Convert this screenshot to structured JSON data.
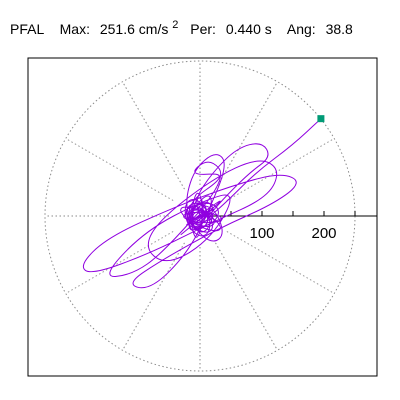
{
  "header": {
    "station": "PFAL",
    "max_label": "Max:",
    "max_value": "251.6 cm/s",
    "max_exp": "2",
    "per_label": "Per:",
    "per_value": "0.440 s",
    "ang_label": "Ang:",
    "ang_value": "38.8"
  },
  "chart_data": {
    "type": "particle-motion (polar plot)",
    "units": "cm/s^2",
    "max_amplitude": 251.6,
    "period_s": 0.44,
    "angle_deg": 38.8,
    "radial_ticks": [
      50,
      100,
      150,
      200,
      250
    ],
    "axis_tick_labels": [
      "100",
      "200"
    ],
    "spokes_deg": [
      0,
      30,
      60,
      90,
      120,
      150,
      180,
      210,
      240,
      270,
      300,
      330
    ],
    "grid": true,
    "trace_color": "#9000e0",
    "end_marker_color": "#009b76",
    "end_point": {
      "x": 195,
      "y": 157
    },
    "trace": [
      {
        "x": 0,
        "y": 0
      },
      {
        "x": 10,
        "y": 6
      },
      {
        "x": -8,
        "y": -5
      },
      {
        "x": 15,
        "y": 9
      },
      {
        "x": -20,
        "y": -12
      },
      {
        "x": 28,
        "y": 16
      },
      {
        "x": -25,
        "y": -15
      },
      {
        "x": 40,
        "y": 22
      },
      {
        "x": -45,
        "y": -30
      },
      {
        "x": 60,
        "y": 45
      },
      {
        "x": -55,
        "y": -50
      },
      {
        "x": 30,
        "y": 20
      },
      {
        "x": 5,
        "y": -40
      },
      {
        "x": -30,
        "y": 15
      },
      {
        "x": 50,
        "y": 70
      },
      {
        "x": -20,
        "y": 65
      },
      {
        "x": 15,
        "y": 95
      },
      {
        "x": 45,
        "y": 60
      },
      {
        "x": -60,
        "y": -60
      },
      {
        "x": -110,
        "y": -95
      },
      {
        "x": -160,
        "y": -100
      },
      {
        "x": -90,
        "y": -25
      },
      {
        "x": 5,
        "y": 25
      },
      {
        "x": 60,
        "y": 40
      },
      {
        "x": 20,
        "y": -35
      },
      {
        "x": -50,
        "y": -80
      },
      {
        "x": -90,
        "y": -55
      },
      {
        "x": -70,
        "y": -10
      },
      {
        "x": 20,
        "y": 60
      },
      {
        "x": 95,
        "y": 95
      },
      {
        "x": 130,
        "y": 75
      },
      {
        "x": 110,
        "y": 30
      },
      {
        "x": 20,
        "y": -10
      },
      {
        "x": -80,
        "y": -60
      },
      {
        "x": -175,
        "y": -95
      },
      {
        "x": -195,
        "y": -80
      },
      {
        "x": -150,
        "y": -35
      },
      {
        "x": -40,
        "y": 15
      },
      {
        "x": 55,
        "y": 50
      },
      {
        "x": 130,
        "y": 70
      },
      {
        "x": 165,
        "y": 55
      },
      {
        "x": 120,
        "y": 20
      },
      {
        "x": 30,
        "y": -20
      },
      {
        "x": -60,
        "y": -70
      },
      {
        "x": -120,
        "y": -110
      },
      {
        "x": -80,
        "y": -120
      },
      {
        "x": -20,
        "y": -60
      },
      {
        "x": 15,
        "y": 10
      },
      {
        "x": 45,
        "y": 85
      },
      {
        "x": 25,
        "y": 105
      },
      {
        "x": -10,
        "y": 75
      },
      {
        "x": -25,
        "y": 20
      },
      {
        "x": -10,
        "y": -20
      },
      {
        "x": 20,
        "y": -45
      },
      {
        "x": 40,
        "y": -30
      },
      {
        "x": 25,
        "y": 10
      },
      {
        "x": 0,
        "y": 20
      },
      {
        "x": -5,
        "y": 5
      },
      {
        "x": 10,
        "y": -5
      },
      {
        "x": 35,
        "y": 25
      },
      {
        "x": 80,
        "y": 70
      },
      {
        "x": 115,
        "y": 95
      },
      {
        "x": 100,
        "y": 120
      },
      {
        "x": 60,
        "y": 110
      },
      {
        "x": 20,
        "y": 70
      },
      {
        "x": -10,
        "y": 25
      },
      {
        "x": 5,
        "y": -10
      },
      {
        "x": 40,
        "y": 20
      },
      {
        "x": 90,
        "y": 70
      },
      {
        "x": 150,
        "y": 115
      },
      {
        "x": 195,
        "y": 157
      }
    ]
  }
}
